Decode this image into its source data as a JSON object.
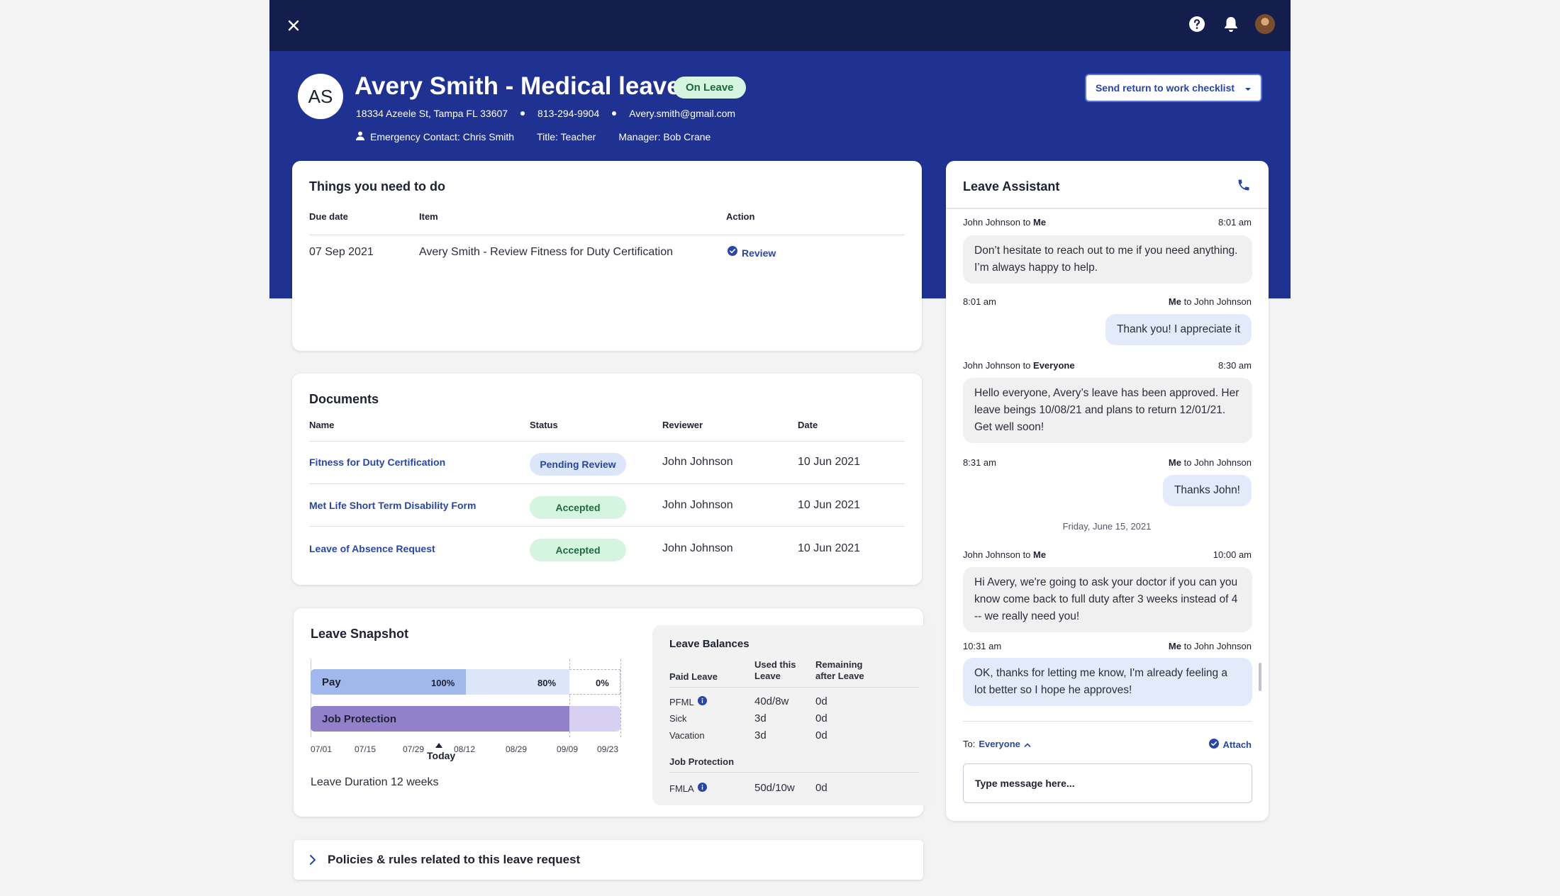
{
  "colors": {
    "header_dark": "#141e4c",
    "header_blue": "#203291",
    "accent": "#2846a8",
    "pay_blue": "#a0b8ec",
    "job_purple": "#9180ca"
  },
  "topbar": {
    "icons": [
      "close-icon",
      "help-icon",
      "bell-icon",
      "avatar"
    ]
  },
  "profile": {
    "initials": "AS",
    "title": "Avery Smith - Medical leave",
    "status": "On Leave",
    "address": "18334 Azeele St, Tampa FL 33607",
    "phone": "813-294-9904",
    "email": "Avery.smith@gmail.com",
    "emergency": "Emergency Contact: Chris Smith",
    "job_title": "Title: Teacher",
    "manager": "Manager: Bob Crane",
    "checklist_button": "Send return to work checklist"
  },
  "todo": {
    "title": "Things you need to do",
    "headers": [
      "Due date",
      "Item",
      "Action"
    ],
    "rows": [
      {
        "date": "07 Sep 2021",
        "item": "Avery Smith - Review Fitness for Duty Certification",
        "action": "Review"
      }
    ]
  },
  "documents": {
    "title": "Documents",
    "headers": [
      "Name",
      "Status",
      "Reviewer",
      "Date"
    ],
    "rows": [
      {
        "name": "Fitness for Duty Certification",
        "status": "Pending Review",
        "reviewer": "John Johnson",
        "date": "10 Jun 2021"
      },
      {
        "name": "Met Life Short Term Disability Form",
        "status": "Accepted",
        "reviewer": "John Johnson",
        "date": "10 Jun 2021"
      },
      {
        "name": "Leave of Absence Request",
        "status": "Accepted",
        "reviewer": "John Johnson",
        "date": "10 Jun 2021"
      }
    ]
  },
  "snapshot": {
    "title": "Leave Snapshot",
    "pay_label": "Pay",
    "pay_pct": [
      "100%",
      "80%",
      "0%"
    ],
    "job_label": "Job Protection",
    "ticks": [
      "07/01",
      "07/15",
      "07/29",
      "08/12",
      "08/29",
      "09/09",
      "09/23"
    ],
    "today": "Today",
    "duration": "Leave Duration 12 weeks",
    "balances": {
      "title": "Leave Balances",
      "col_used": "Used this Leave",
      "col_remaining": "Remaining after Leave",
      "paid_leave": "Paid Leave",
      "rows": [
        {
          "name": "PFML",
          "used": "40d/8w",
          "remaining": "0d"
        },
        {
          "name": "Sick",
          "used": "3d",
          "remaining": "0d"
        },
        {
          "name": "Vacation",
          "used": "3d",
          "remaining": "0d"
        }
      ],
      "job_protection": "Job Protection",
      "fmla": {
        "name": "FMLA",
        "used": "50d/10w",
        "remaining": "0d"
      }
    }
  },
  "policies": {
    "label": "Policies & rules related to this leave request"
  },
  "chat": {
    "title": "Leave Assistant",
    "day_separator": "Friday, June 15, 2021",
    "to_label": "To:",
    "to_value": "Everyone",
    "attach": "Attach",
    "placeholder": "Type message here...",
    "messages": [
      {
        "from": "John Johnson",
        "to": "Me",
        "time": "8:01 am",
        "text": "Don’t hesitate to reach out to me if you need anything. I’m always happy to help."
      },
      {
        "from": "Me",
        "to": "John Johnson",
        "time": "8:01 am",
        "text": "Thank you! I appreciate it"
      },
      {
        "from": "John Johnson",
        "to": "Everyone",
        "time": "8:30 am",
        "text": "Hello everyone, Avery’s leave has been approved. Her leave beings 10/08/21 and plans to return 12/01/21. Get well soon!"
      },
      {
        "from": "Me",
        "to": "John Johnson",
        "time": "8:31 am",
        "text": "Thanks John!"
      },
      {
        "from": "John Johnson",
        "to": "Me",
        "time": "10:00 am",
        "text": "Hi Avery, we're going to ask your doctor if you can you know come back to full duty after 3 weeks instead of 4 -- we really need you!"
      },
      {
        "from": "Me",
        "to": "John Johnson",
        "time": "10:31 am",
        "text": "OK, thanks for letting me know, I'm already feeling a lot better so I hope he approves!"
      }
    ]
  }
}
